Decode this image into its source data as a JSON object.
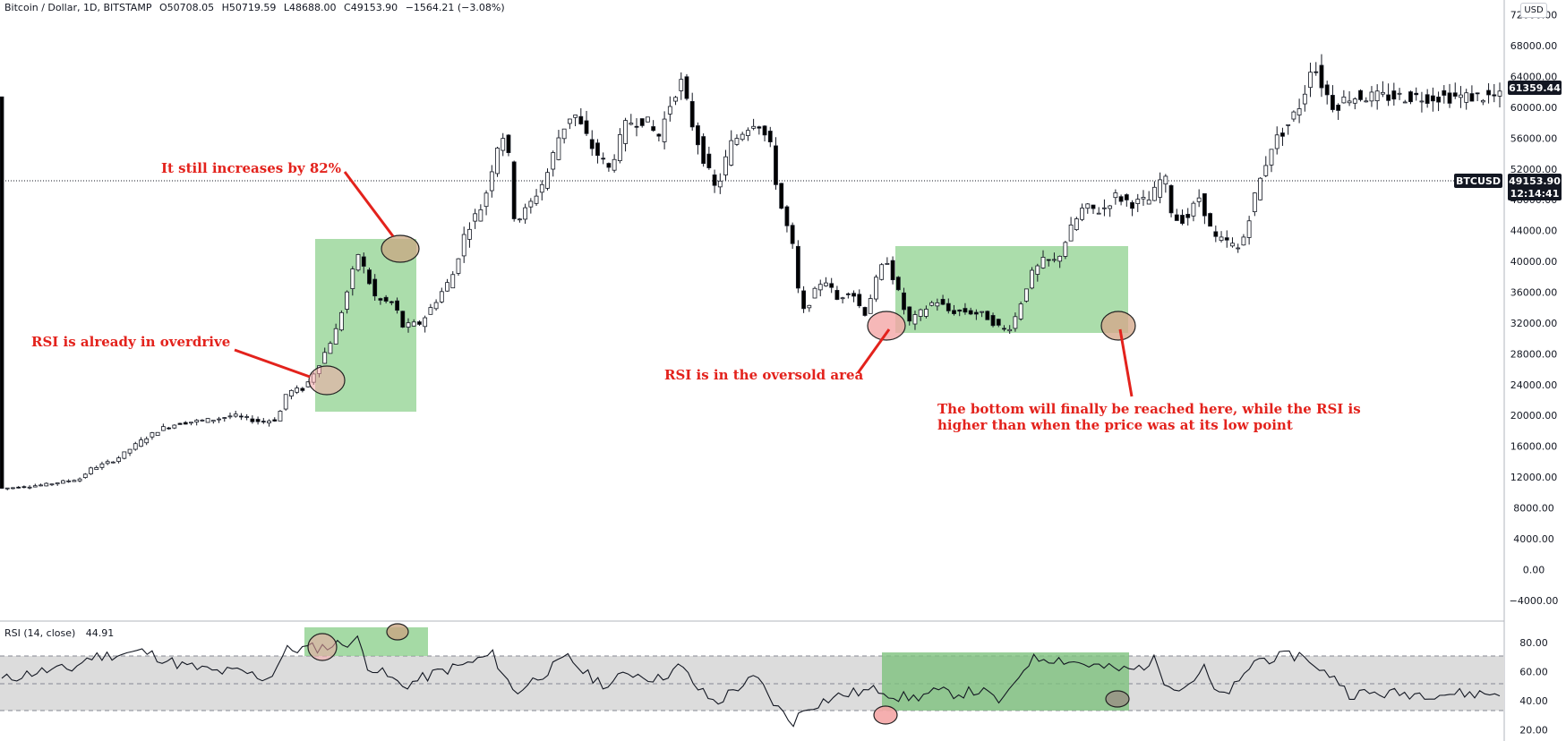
{
  "header": {
    "symbol": "Bitcoin / Dollar, 1D, BITSTAMP",
    "open": "O50708.05",
    "high": "H50719.59",
    "low": "L48688.00",
    "close": "C49153.90",
    "change": "−1564.21 (−3.08%)"
  },
  "currency_badge": "USD",
  "rsi_header": {
    "name": "RSI (14, close)",
    "value": "44.91"
  },
  "price_tags": {
    "last_price": "61359.44",
    "symbol": "BTCUSD",
    "current": "49153.90",
    "countdown": "12:14:41"
  },
  "annotations": {
    "increase": "It still increases by 82%",
    "overdrive": "RSI is already in overdrive",
    "oversold": "RSI is in the oversold area",
    "bottom_line1": "The bottom will finally be reached here, while the RSI is",
    "bottom_line2": "higher than when the price was at its low point"
  },
  "colors": {
    "up": "#ffffff",
    "down": "#000000",
    "highlight": "#8fd18f",
    "annotation": "#e3221c",
    "rsi_band": "#dcdcdc"
  },
  "chart_data": [
    {
      "type": "candlestick",
      "title": "Bitcoin / Dollar, 1D, BITSTAMP",
      "price_axis_ticks": [
        "72000.00",
        "68000.00",
        "64000.00",
        "60000.00",
        "56000.00",
        "52000.00",
        "48000.00",
        "44000.00",
        "40000.00",
        "36000.00",
        "32000.00",
        "28000.00",
        "24000.00",
        "20000.00",
        "16000.00",
        "12000.00",
        "8000.00",
        "4000.00",
        "0.00",
        "−4000.00"
      ],
      "ylim": [
        -6000,
        73000
      ],
      "points_count": 270,
      "close_path": [
        [
          0,
          10500
        ],
        [
          50,
          11000
        ],
        [
          90,
          11800
        ],
        [
          100,
          13000
        ],
        [
          130,
          14300
        ],
        [
          155,
          16500
        ],
        [
          180,
          18300
        ],
        [
          200,
          19000
        ],
        [
          240,
          19500
        ],
        [
          260,
          20000
        ],
        [
          290,
          19200
        ],
        [
          310,
          19500
        ],
        [
          320,
          23000
        ],
        [
          340,
          23500
        ],
        [
          360,
          27500
        ],
        [
          375,
          31000
        ],
        [
          385,
          35000
        ],
        [
          400,
          41000
        ],
        [
          410,
          38000
        ],
        [
          420,
          35000
        ],
        [
          440,
          34500
        ],
        [
          450,
          31500
        ],
        [
          470,
          32000
        ],
        [
          490,
          35500
        ],
        [
          505,
          38000
        ],
        [
          520,
          44000
        ],
        [
          540,
          47500
        ],
        [
          555,
          55000
        ],
        [
          565,
          57000
        ],
        [
          575,
          45000
        ],
        [
          590,
          47000
        ],
        [
          610,
          51000
        ],
        [
          625,
          56500
        ],
        [
          640,
          59500
        ],
        [
          660,
          55000
        ],
        [
          680,
          52000
        ],
        [
          700,
          58000
        ],
        [
          720,
          58500
        ],
        [
          735,
          56000
        ],
        [
          750,
          61000
        ],
        [
          760,
          63500
        ],
        [
          775,
          57000
        ],
        [
          790,
          52000
        ],
        [
          800,
          49000
        ],
        [
          815,
          55000
        ],
        [
          830,
          57000
        ],
        [
          845,
          58500
        ],
        [
          860,
          55000
        ],
        [
          870,
          48000
        ],
        [
          885,
          42000
        ],
        [
          895,
          33000
        ],
        [
          905,
          35000
        ],
        [
          920,
          38000
        ],
        [
          935,
          35000
        ],
        [
          950,
          36500
        ],
        [
          965,
          33000
        ],
        [
          980,
          38000
        ],
        [
          990,
          40500
        ],
        [
          1000,
          37000
        ],
        [
          1015,
          32000
        ],
        [
          1030,
          33500
        ],
        [
          1045,
          35000
        ],
        [
          1060,
          33500
        ],
        [
          1080,
          33500
        ],
        [
          1100,
          33000
        ],
        [
          1115,
          31500
        ],
        [
          1125,
          31000
        ],
        [
          1135,
          33000
        ],
        [
          1150,
          38000
        ],
        [
          1165,
          40000
        ],
        [
          1180,
          40000
        ],
        [
          1195,
          44000
        ],
        [
          1210,
          47000
        ],
        [
          1230,
          46500
        ],
        [
          1245,
          48500
        ],
        [
          1265,
          47500
        ],
        [
          1285,
          48000
        ],
        [
          1300,
          51500
        ],
        [
          1310,
          45500
        ],
        [
          1325,
          45500
        ],
        [
          1340,
          48500
        ],
        [
          1355,
          43000
        ],
        [
          1370,
          42500
        ],
        [
          1385,
          41500
        ],
        [
          1400,
          48000
        ],
        [
          1420,
          55000
        ],
        [
          1440,
          58000
        ],
        [
          1455,
          61000
        ],
        [
          1465,
          66000
        ],
        [
          1480,
          62000
        ],
        [
          1490,
          60000
        ],
        [
          1505,
          61359
        ]
      ]
    },
    {
      "type": "line",
      "title": "RSI (14, close)",
      "rsi_axis_ticks": [
        "80.00",
        "60.00",
        "40.00",
        "20.00"
      ],
      "ylim": [
        16,
        90
      ],
      "bands": [
        30,
        50,
        70
      ],
      "points_count": 300,
      "path": [
        [
          0,
          54
        ],
        [
          40,
          60
        ],
        [
          80,
          62
        ],
        [
          100,
          70
        ],
        [
          130,
          72
        ],
        [
          160,
          74
        ],
        [
          200,
          65
        ],
        [
          240,
          60
        ],
        [
          270,
          60
        ],
        [
          300,
          55
        ],
        [
          320,
          75
        ],
        [
          340,
          76
        ],
        [
          360,
          77
        ],
        [
          385,
          80
        ],
        [
          400,
          82
        ],
        [
          410,
          65
        ],
        [
          430,
          58
        ],
        [
          450,
          50
        ],
        [
          470,
          55
        ],
        [
          490,
          60
        ],
        [
          520,
          65
        ],
        [
          550,
          72
        ],
        [
          575,
          45
        ],
        [
          590,
          52
        ],
        [
          615,
          62
        ],
        [
          635,
          70
        ],
        [
          655,
          58
        ],
        [
          680,
          50
        ],
        [
          700,
          60
        ],
        [
          735,
          55
        ],
        [
          760,
          64
        ],
        [
          780,
          48
        ],
        [
          800,
          38
        ],
        [
          820,
          48
        ],
        [
          845,
          56
        ],
        [
          860,
          42
        ],
        [
          870,
          34
        ],
        [
          885,
          25
        ],
        [
          900,
          35
        ],
        [
          920,
          40
        ],
        [
          940,
          44
        ],
        [
          960,
          46
        ],
        [
          985,
          48
        ],
        [
          1000,
          43
        ],
        [
          1020,
          42
        ],
        [
          1045,
          46
        ],
        [
          1070,
          45
        ],
        [
          1095,
          47
        ],
        [
          1115,
          40
        ],
        [
          1125,
          42
        ],
        [
          1135,
          55
        ],
        [
          1150,
          68
        ],
        [
          1165,
          70
        ],
        [
          1190,
          68
        ],
        [
          1215,
          65
        ],
        [
          1240,
          62
        ],
        [
          1265,
          61
        ],
        [
          1290,
          68
        ],
        [
          1300,
          55
        ],
        [
          1320,
          48
        ],
        [
          1345,
          62
        ],
        [
          1360,
          42
        ],
        [
          1385,
          52
        ],
        [
          1400,
          68
        ],
        [
          1430,
          70
        ],
        [
          1460,
          72
        ],
        [
          1470,
          60
        ],
        [
          1490,
          58
        ],
        [
          1505,
          45
        ]
      ]
    }
  ]
}
